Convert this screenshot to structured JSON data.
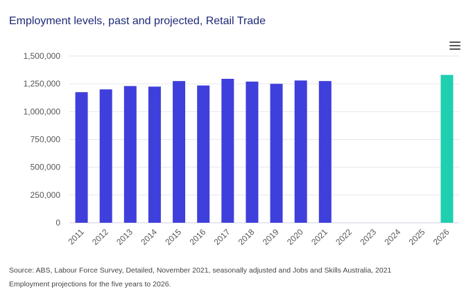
{
  "title": "Employment levels, past and projected, Retail Trade",
  "menu_icon": "hamburger-menu-icon",
  "colors": {
    "historical": "#3f3fdc",
    "projected": "#1ecfb0",
    "title": "#1f2a78"
  },
  "chart_data": {
    "type": "bar",
    "categories": [
      "2011",
      "2012",
      "2013",
      "2014",
      "2015",
      "2016",
      "2017",
      "2018",
      "2019",
      "2020",
      "2021",
      "2022",
      "2023",
      "2024",
      "2025",
      "2026"
    ],
    "series": [
      {
        "values": [
          1175000,
          1200000,
          1230000,
          1225000,
          1275000,
          1235000,
          1295000,
          1270000,
          1250000,
          1280000,
          1275000,
          null,
          null,
          null,
          null,
          null
        ]
      },
      {
        "values": [
          null,
          null,
          null,
          null,
          null,
          null,
          null,
          null,
          null,
          null,
          null,
          null,
          null,
          null,
          null,
          1330000
        ]
      }
    ],
    "y_ticks": [
      "0",
      "250,000",
      "500,000",
      "750,000",
      "1,000,000",
      "1,250,000",
      "1,500,000"
    ],
    "ylim": [
      0,
      1500000
    ],
    "grid": true
  },
  "source_line1": "Source: ABS, Labour Force Survey, Detailed, November 2021, seasonally adjusted and Jobs and Skills Australia, 2021",
  "source_line2": "Employment projections for the five years to 2026."
}
